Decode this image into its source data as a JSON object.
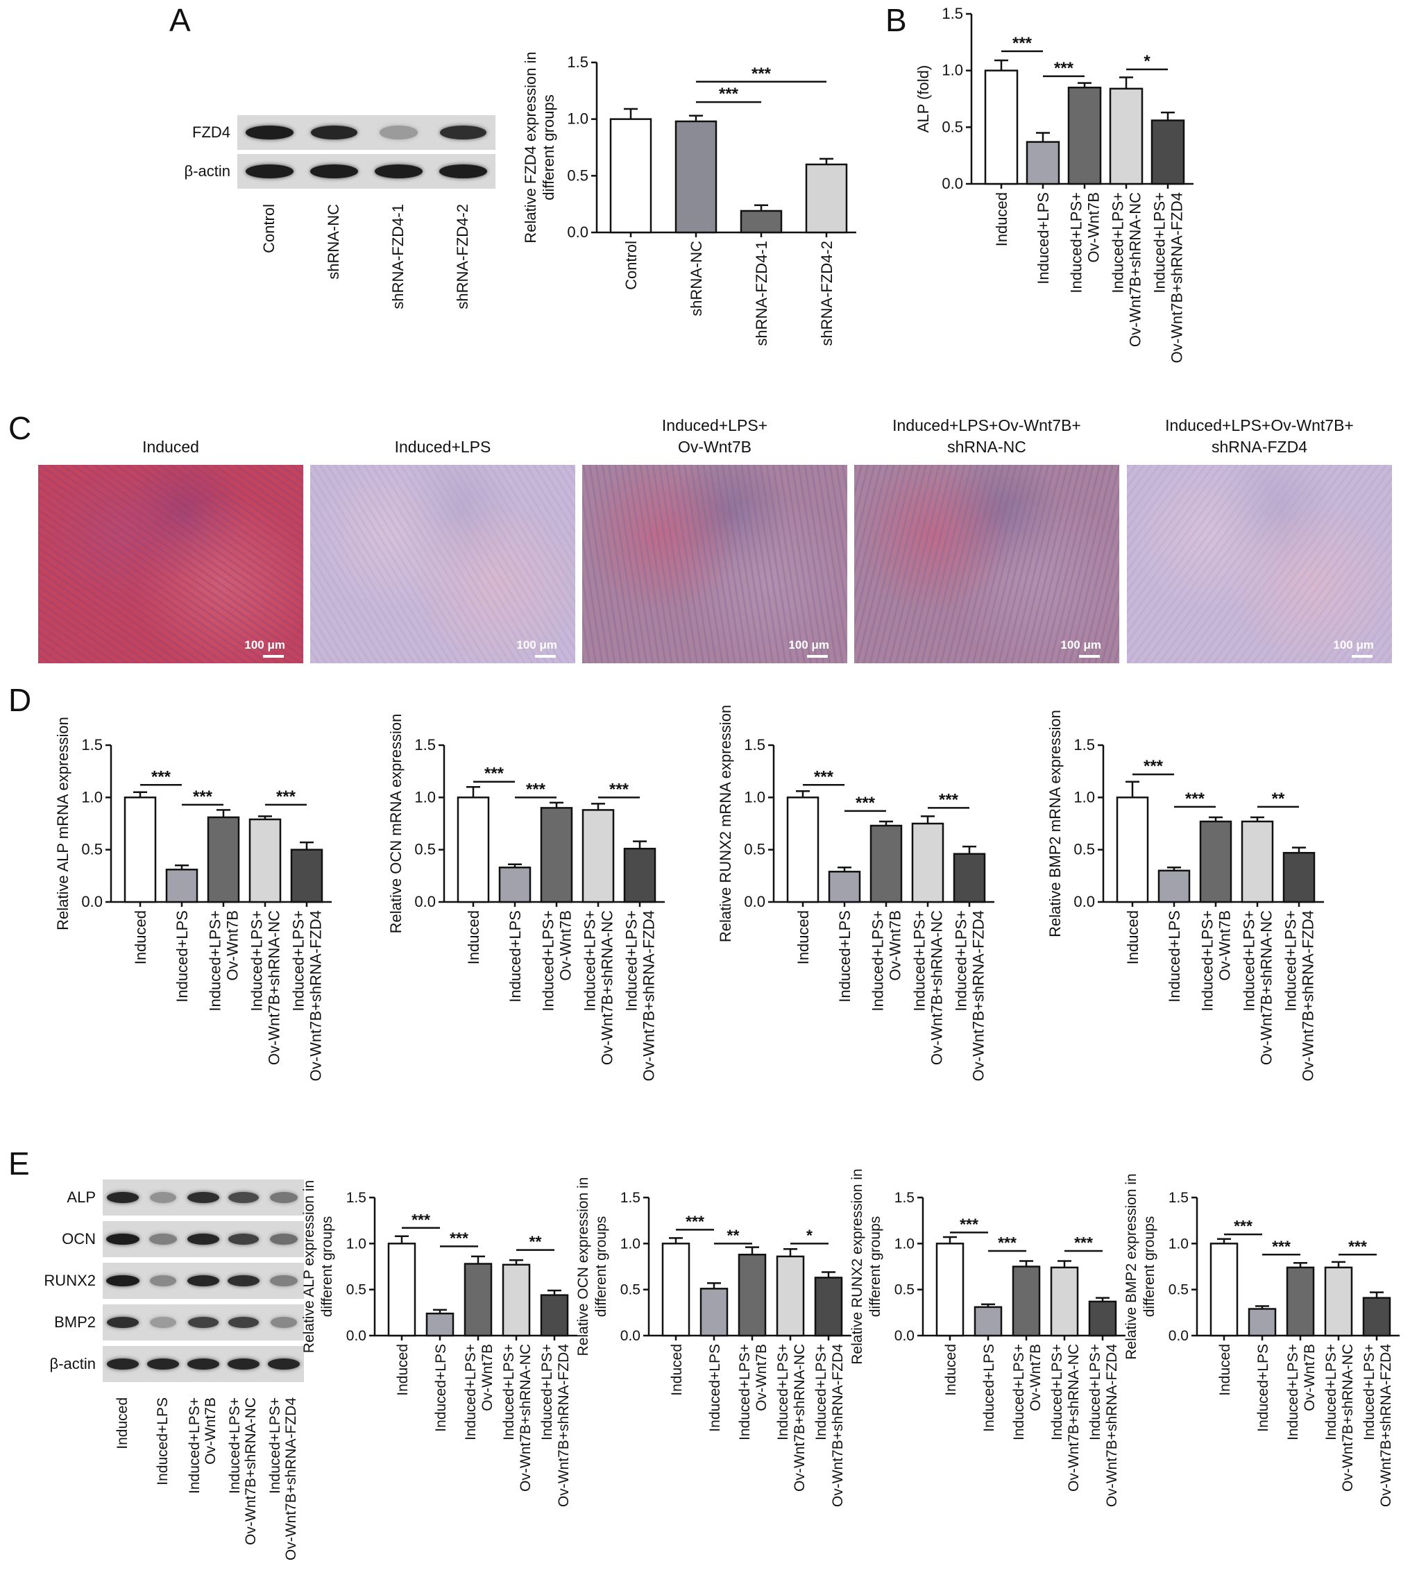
{
  "panels": {
    "A": "A",
    "B": "B",
    "C": "C",
    "D": "D",
    "E": "E"
  },
  "colors": {
    "induced": "#ffffff",
    "lps": "#a2a2ad",
    "ov_wnt7b": "#6a6a6a",
    "shrna_nc": "#d6d6d6",
    "shrna_fzd4": "#4b4b4b",
    "control_bar": "#ffffff",
    "a_shrna_nc": "#8b8b96",
    "a_fzd4_1": "#6c6c6c",
    "a_fzd4_2": "#d4d4d4"
  },
  "blotA": {
    "rows": [
      {
        "label": "FZD4",
        "bands": [
          0.95,
          0.9,
          0.25,
          0.85
        ]
      },
      {
        "label": "β-actin",
        "bands": [
          0.95,
          0.95,
          0.95,
          0.95
        ]
      }
    ],
    "lanes": [
      "Control",
      "shRNA-NC",
      "shRNA-FZD4-1",
      "shRNA-FZD4-2"
    ]
  },
  "blotE": {
    "rows": [
      {
        "label": "ALP",
        "bands": [
          0.9,
          0.3,
          0.85,
          0.7,
          0.45
        ]
      },
      {
        "label": "OCN",
        "bands": [
          0.95,
          0.4,
          0.9,
          0.75,
          0.5
        ]
      },
      {
        "label": "RUNX2",
        "bands": [
          0.95,
          0.35,
          0.9,
          0.85,
          0.4
        ]
      },
      {
        "label": "BMP2",
        "bands": [
          0.85,
          0.25,
          0.75,
          0.75,
          0.35
        ]
      },
      {
        "label": "β-actin",
        "bands": [
          0.9,
          0.9,
          0.9,
          0.9,
          0.9
        ]
      }
    ],
    "lanes": [
      [
        "Induced"
      ],
      [
        "Induced+LPS"
      ],
      [
        "Induced+LPS+",
        "Ov-Wnt7B"
      ],
      [
        "Induced+LPS+",
        "Ov-Wnt7B+shRNA-NC"
      ],
      [
        "Induced+LPS+",
        "Ov-Wnt7B+shRNA-FZD4"
      ]
    ]
  },
  "micrographs": [
    {
      "title": [
        "Induced"
      ],
      "scale": "100 μm",
      "tint": "red"
    },
    {
      "title": [
        "Induced+LPS"
      ],
      "scale": "100 μm",
      "tint": "pale"
    },
    {
      "title": [
        "Induced+LPS+",
        "Ov-Wnt7B"
      ],
      "scale": "100 μm",
      "tint": "mixed"
    },
    {
      "title": [
        "Induced+LPS+Ov-Wnt7B+",
        "shRNA-NC"
      ],
      "scale": "100 μm",
      "tint": "mixed"
    },
    {
      "title": [
        "Induced+LPS+Ov-Wnt7B+",
        "shRNA-FZD4"
      ],
      "scale": "100 μm",
      "tint": "pale"
    }
  ],
  "chart_data": [
    {
      "id": "A",
      "type": "bar",
      "categories": [
        [
          "Control"
        ],
        [
          "shRNA-NC"
        ],
        [
          "shRNA-FZD4-1"
        ],
        [
          "shRNA-FZD4-2"
        ]
      ],
      "values": [
        1.0,
        0.98,
        0.19,
        0.6
      ],
      "errors": [
        0.09,
        0.05,
        0.05,
        0.05
      ],
      "ylabel": [
        "Relative FZD4 expression in",
        "different groups"
      ],
      "ylim": [
        0,
        1.5
      ],
      "yticks": [
        "0.0",
        "0.5",
        "1.0",
        "1.5"
      ],
      "bar_colors": [
        "control_bar",
        "a_shrna_nc",
        "a_fzd4_1",
        "a_fzd4_2"
      ],
      "significance": [
        {
          "from": 1,
          "to": 2,
          "label": "***",
          "y": 1.15
        },
        {
          "from": 1,
          "to": 3,
          "label": "***",
          "y": 1.33
        }
      ]
    },
    {
      "id": "B",
      "type": "bar",
      "categories": [
        [
          "Induced"
        ],
        [
          "Induced+LPS"
        ],
        [
          "Induced+LPS+",
          "Ov-Wnt7B"
        ],
        [
          "Induced+LPS+",
          "Ov-Wnt7B+shRNA-NC"
        ],
        [
          "Induced+LPS+",
          "Ov-Wnt7B+shRNA-FZD4"
        ]
      ],
      "values": [
        1.0,
        0.37,
        0.85,
        0.84,
        0.56
      ],
      "errors": [
        0.09,
        0.08,
        0.04,
        0.1,
        0.07
      ],
      "ylabel": [
        "ALP (fold)"
      ],
      "ylim": [
        0,
        1.5
      ],
      "yticks": [
        "0.0",
        "0.5",
        "1.0",
        "1.5"
      ],
      "bar_colors": [
        "induced",
        "lps",
        "ov_wnt7b",
        "shrna_nc",
        "shrna_fzd4"
      ],
      "significance": [
        {
          "from": 0,
          "to": 1,
          "label": "***",
          "y": 1.17
        },
        {
          "from": 1,
          "to": 2,
          "label": "***",
          "y": 0.95
        },
        {
          "from": 3,
          "to": 4,
          "label": "*",
          "y": 1.01
        }
      ]
    },
    {
      "id": "D1",
      "type": "bar",
      "categories": [
        [
          "Induced"
        ],
        [
          "Induced+LPS"
        ],
        [
          "Induced+LPS+",
          "Ov-Wnt7B"
        ],
        [
          "Induced+LPS+",
          "Ov-Wnt7B+shRNA-NC"
        ],
        [
          "Induced+LPS+",
          "Ov-Wnt7B+shRNA-FZD4"
        ]
      ],
      "values": [
        1.0,
        0.31,
        0.81,
        0.79,
        0.5
      ],
      "errors": [
        0.05,
        0.04,
        0.07,
        0.03,
        0.07
      ],
      "ylabel": [
        "Relative ALP mRNA expression"
      ],
      "ylim": [
        0,
        1.5
      ],
      "yticks": [
        "0.0",
        "0.5",
        "1.0",
        "1.5"
      ],
      "bar_colors": [
        "induced",
        "lps",
        "ov_wnt7b",
        "shrna_nc",
        "shrna_fzd4"
      ],
      "significance": [
        {
          "from": 0,
          "to": 1,
          "label": "***",
          "y": 1.12
        },
        {
          "from": 1,
          "to": 2,
          "label": "***",
          "y": 0.93
        },
        {
          "from": 3,
          "to": 4,
          "label": "***",
          "y": 0.93
        }
      ]
    },
    {
      "id": "D2",
      "type": "bar",
      "categories": [
        [
          "Induced"
        ],
        [
          "Induced+LPS"
        ],
        [
          "Induced+LPS+",
          "Ov-Wnt7B"
        ],
        [
          "Induced+LPS+",
          "Ov-Wnt7B+shRNA-NC"
        ],
        [
          "Induced+LPS+",
          "Ov-Wnt7B+shRNA-FZD4"
        ]
      ],
      "values": [
        1.0,
        0.33,
        0.9,
        0.88,
        0.51
      ],
      "errors": [
        0.1,
        0.03,
        0.05,
        0.06,
        0.07
      ],
      "ylabel": [
        "Relative OCN mRNA expression"
      ],
      "ylim": [
        0,
        1.5
      ],
      "yticks": [
        "0.0",
        "0.5",
        "1.0",
        "1.5"
      ],
      "bar_colors": [
        "induced",
        "lps",
        "ov_wnt7b",
        "shrna_nc",
        "shrna_fzd4"
      ],
      "significance": [
        {
          "from": 0,
          "to": 1,
          "label": "***",
          "y": 1.15
        },
        {
          "from": 1,
          "to": 2,
          "label": "***",
          "y": 1.0
        },
        {
          "from": 3,
          "to": 4,
          "label": "***",
          "y": 1.0
        }
      ]
    },
    {
      "id": "D3",
      "type": "bar",
      "categories": [
        [
          "Induced"
        ],
        [
          "Induced+LPS"
        ],
        [
          "Induced+LPS+",
          "Ov-Wnt7B"
        ],
        [
          "Induced+LPS+",
          "Ov-Wnt7B+shRNA-NC"
        ],
        [
          "Induced+LPS+",
          "Ov-Wnt7B+shRNA-FZD4"
        ]
      ],
      "values": [
        1.0,
        0.29,
        0.73,
        0.75,
        0.46
      ],
      "errors": [
        0.06,
        0.04,
        0.04,
        0.07,
        0.07
      ],
      "ylabel": [
        "Relative RUNX2 mRNA expression"
      ],
      "ylim": [
        0,
        1.5
      ],
      "yticks": [
        "0.0",
        "0.5",
        "1.0",
        "1.5"
      ],
      "bar_colors": [
        "induced",
        "lps",
        "ov_wnt7b",
        "shrna_nc",
        "shrna_fzd4"
      ],
      "significance": [
        {
          "from": 0,
          "to": 1,
          "label": "***",
          "y": 1.12
        },
        {
          "from": 1,
          "to": 2,
          "label": "***",
          "y": 0.87
        },
        {
          "from": 3,
          "to": 4,
          "label": "***",
          "y": 0.9
        }
      ]
    },
    {
      "id": "D4",
      "type": "bar",
      "categories": [
        [
          "Induced"
        ],
        [
          "Induced+LPS"
        ],
        [
          "Induced+LPS+",
          "Ov-Wnt7B"
        ],
        [
          "Induced+LPS+",
          "Ov-Wnt7B+shRNA-NC"
        ],
        [
          "Induced+LPS+",
          "Ov-Wnt7B+shRNA-FZD4"
        ]
      ],
      "values": [
        1.0,
        0.3,
        0.77,
        0.77,
        0.47
      ],
      "errors": [
        0.15,
        0.03,
        0.04,
        0.04,
        0.05
      ],
      "ylabel": [
        "Relative BMP2 mRNA expression"
      ],
      "ylim": [
        0,
        1.5
      ],
      "yticks": [
        "0.0",
        "0.5",
        "1.0",
        "1.5"
      ],
      "bar_colors": [
        "induced",
        "lps",
        "ov_wnt7b",
        "shrna_nc",
        "shrna_fzd4"
      ],
      "significance": [
        {
          "from": 0,
          "to": 1,
          "label": "***",
          "y": 1.22
        },
        {
          "from": 1,
          "to": 2,
          "label": "***",
          "y": 0.91
        },
        {
          "from": 3,
          "to": 4,
          "label": "**",
          "y": 0.91
        }
      ]
    },
    {
      "id": "E1",
      "type": "bar",
      "categories": [
        [
          "Induced"
        ],
        [
          "Induced+LPS"
        ],
        [
          "Induced+LPS+",
          "Ov-Wnt7B"
        ],
        [
          "Induced+LPS+",
          "Ov-Wnt7B+shRNA-NC"
        ],
        [
          "Induced+LPS+",
          "Ov-Wnt7B+shRNA-FZD4"
        ]
      ],
      "values": [
        1.0,
        0.24,
        0.78,
        0.77,
        0.44
      ],
      "errors": [
        0.08,
        0.04,
        0.08,
        0.05,
        0.05
      ],
      "ylabel": [
        "Relative ALP expression in",
        "different groups"
      ],
      "ylim": [
        0,
        1.5
      ],
      "yticks": [
        "0.0",
        "0.5",
        "1.0",
        "1.5"
      ],
      "bar_colors": [
        "induced",
        "lps",
        "ov_wnt7b",
        "shrna_nc",
        "shrna_fzd4"
      ],
      "significance": [
        {
          "from": 0,
          "to": 1,
          "label": "***",
          "y": 1.17
        },
        {
          "from": 1,
          "to": 2,
          "label": "***",
          "y": 0.97
        },
        {
          "from": 3,
          "to": 4,
          "label": "**",
          "y": 0.93
        }
      ]
    },
    {
      "id": "E2",
      "type": "bar",
      "categories": [
        [
          "Induced"
        ],
        [
          "Induced+LPS"
        ],
        [
          "Induced+LPS+",
          "Ov-Wnt7B"
        ],
        [
          "Induced+LPS+",
          "Ov-Wnt7B+shRNA-NC"
        ],
        [
          "Induced+LPS+",
          "Ov-Wnt7B+shRNA-FZD4"
        ]
      ],
      "values": [
        1.0,
        0.51,
        0.88,
        0.86,
        0.63
      ],
      "errors": [
        0.06,
        0.06,
        0.08,
        0.08,
        0.06
      ],
      "ylabel": [
        "Relative OCN expression in",
        "different groups"
      ],
      "ylim": [
        0,
        1.5
      ],
      "yticks": [
        "0.0",
        "0.5",
        "1.0",
        "1.5"
      ],
      "bar_colors": [
        "induced",
        "lps",
        "ov_wnt7b",
        "shrna_nc",
        "shrna_fzd4"
      ],
      "significance": [
        {
          "from": 0,
          "to": 1,
          "label": "***",
          "y": 1.15
        },
        {
          "from": 1,
          "to": 2,
          "label": "**",
          "y": 1.0
        },
        {
          "from": 3,
          "to": 4,
          "label": "*",
          "y": 1.0
        }
      ]
    },
    {
      "id": "E3",
      "type": "bar",
      "categories": [
        [
          "Induced"
        ],
        [
          "Induced+LPS"
        ],
        [
          "Induced+LPS+",
          "Ov-Wnt7B"
        ],
        [
          "Induced+LPS+",
          "Ov-Wnt7B+shRNA-NC"
        ],
        [
          "Induced+LPS+",
          "Ov-Wnt7B+shRNA-FZD4"
        ]
      ],
      "values": [
        1.0,
        0.31,
        0.75,
        0.74,
        0.37
      ],
      "errors": [
        0.07,
        0.03,
        0.06,
        0.07,
        0.04
      ],
      "ylabel": [
        "Relative RUNX2 expression in",
        "different groups"
      ],
      "ylim": [
        0,
        1.5
      ],
      "yticks": [
        "0.0",
        "0.5",
        "1.0",
        "1.5"
      ],
      "bar_colors": [
        "induced",
        "lps",
        "ov_wnt7b",
        "shrna_nc",
        "shrna_fzd4"
      ],
      "significance": [
        {
          "from": 0,
          "to": 1,
          "label": "***",
          "y": 1.12
        },
        {
          "from": 1,
          "to": 2,
          "label": "***",
          "y": 0.92
        },
        {
          "from": 3,
          "to": 4,
          "label": "***",
          "y": 0.92
        }
      ]
    },
    {
      "id": "E4",
      "type": "bar",
      "categories": [
        [
          "Induced"
        ],
        [
          "Induced+LPS"
        ],
        [
          "Induced+LPS+",
          "Ov-Wnt7B"
        ],
        [
          "Induced+LPS+",
          "Ov-Wnt7B+shRNA-NC"
        ],
        [
          "Induced+LPS+",
          "Ov-Wnt7B+shRNA-FZD4"
        ]
      ],
      "values": [
        1.0,
        0.29,
        0.74,
        0.74,
        0.41
      ],
      "errors": [
        0.05,
        0.03,
        0.05,
        0.06,
        0.06
      ],
      "ylabel": [
        "Relative BMP2 expression in",
        "different groups"
      ],
      "ylim": [
        0,
        1.5
      ],
      "yticks": [
        "0.0",
        "0.5",
        "1.0",
        "1.5"
      ],
      "bar_colors": [
        "induced",
        "lps",
        "ov_wnt7b",
        "shrna_nc",
        "shrna_fzd4"
      ],
      "significance": [
        {
          "from": 0,
          "to": 1,
          "label": "***",
          "y": 1.1
        },
        {
          "from": 1,
          "to": 2,
          "label": "***",
          "y": 0.88
        },
        {
          "from": 3,
          "to": 4,
          "label": "***",
          "y": 0.88
        }
      ]
    }
  ]
}
